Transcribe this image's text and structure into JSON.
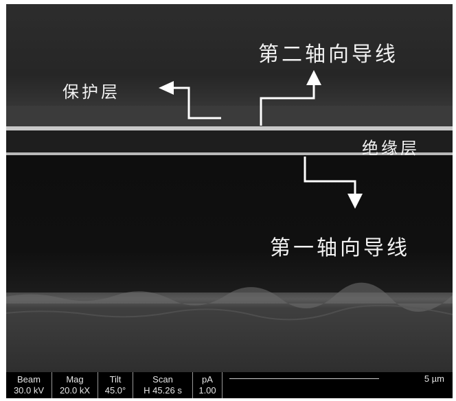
{
  "labels": {
    "protective_layer": "保护层",
    "second_axis_wire": "第二轴向导线",
    "insulating_layer": "绝缘层",
    "first_axis_wire": "第一轴向导线"
  },
  "databar": {
    "fields": [
      {
        "name": "Beam",
        "value": "30.0 kV"
      },
      {
        "name": "Mag",
        "value": "20.0 kX"
      },
      {
        "name": "Tilt",
        "value": "45.0°"
      },
      {
        "name": "Scan",
        "value": "H 45.26 s"
      },
      {
        "name": "pA",
        "value": "1.00"
      }
    ],
    "scale_label": "5 µm"
  },
  "colors": {
    "top_layer": "#2c2c2c",
    "bright_line": "#cfcfcf",
    "dark_layer": "#101010",
    "substrate": "#3a3a3a",
    "annotation": "#ffffff"
  }
}
